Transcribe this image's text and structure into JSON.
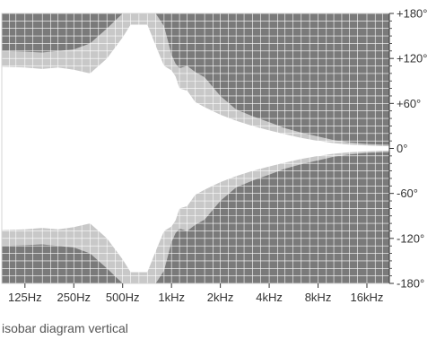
{
  "chart_data": {
    "type": "area",
    "title": "",
    "caption": "isobar diagram vertical",
    "x_scale": "log",
    "xlim_hz": [
      90,
      22000
    ],
    "ylim_deg": [
      -180,
      180
    ],
    "x_ticks": [
      {
        "hz": 125,
        "label": "125Hz"
      },
      {
        "hz": 250,
        "label": "250Hz"
      },
      {
        "hz": 500,
        "label": "500Hz"
      },
      {
        "hz": 1000,
        "label": "1kHz"
      },
      {
        "hz": 2000,
        "label": "2kHz"
      },
      {
        "hz": 4000,
        "label": "4kHz"
      },
      {
        "hz": 8000,
        "label": "8kHz"
      },
      {
        "hz": 16000,
        "label": "16kHz"
      }
    ],
    "y_ticks": [
      {
        "deg": 180,
        "label": "+180°"
      },
      {
        "deg": 120,
        "label": "+120°"
      },
      {
        "deg": 60,
        "label": "+60°"
      },
      {
        "deg": 0,
        "label": "0°"
      },
      {
        "deg": -60,
        "label": "-60°"
      },
      {
        "deg": -120,
        "label": "-120°"
      },
      {
        "deg": -180,
        "label": "-180°"
      }
    ],
    "grid": true,
    "minor_grid_hz": [
      90,
      100,
      110,
      125,
      140,
      160,
      180,
      200,
      225,
      250,
      280,
      315,
      355,
      400,
      450,
      500,
      560,
      630,
      710,
      800,
      900,
      1000,
      1120,
      1250,
      1400,
      1600,
      1800,
      2000,
      2240,
      2500,
      2800,
      3150,
      3550,
      4000,
      4500,
      5000,
      5600,
      6300,
      7100,
      8000,
      9000,
      10000,
      11200,
      12500,
      14000,
      16000,
      18000,
      20000
    ],
    "minor_grid_deg": [
      -180,
      -170,
      -160,
      -150,
      -140,
      -130,
      -120,
      -110,
      -100,
      -90,
      -80,
      -70,
      -60,
      -50,
      -40,
      -30,
      -20,
      -10,
      0,
      10,
      20,
      30,
      40,
      50,
      60,
      70,
      80,
      90,
      100,
      110,
      120,
      130,
      140,
      150,
      160,
      170,
      180
    ],
    "series": [
      {
        "role": "inner_boundary",
        "hz": [
          90,
          125,
          160,
          200,
          250,
          315,
          400,
          500,
          560,
          630,
          710,
          800,
          900,
          1000,
          1060,
          1120,
          1250,
          1400,
          1600,
          2000,
          2500,
          3150,
          4000,
          5000,
          6300,
          8000,
          10000,
          12500,
          16000,
          20000,
          22000
        ],
        "deg": [
          109,
          108,
          106,
          108,
          105,
          100,
          120,
          148,
          165,
          165,
          165,
          137,
          110,
          104,
          96,
          80,
          77,
          62,
          55,
          45,
          37,
          30,
          24,
          19,
          14,
          10,
          7,
          5,
          4,
          3,
          3
        ]
      },
      {
        "role": "outer_boundary",
        "hz": [
          90,
          125,
          160,
          200,
          250,
          315,
          400,
          500,
          560,
          630,
          710,
          800,
          900,
          1000,
          1060,
          1120,
          1250,
          1400,
          1600,
          2000,
          2500,
          3150,
          4000,
          5000,
          6300,
          8000,
          10000,
          12500,
          16000,
          20000,
          22000
        ],
        "deg": [
          130,
          129,
          128,
          130,
          132,
          140,
          160,
          180,
          180,
          180,
          180,
          180,
          163,
          125,
          113,
          107,
          110,
          102,
          95,
          70,
          52,
          43,
          35,
          27,
          21,
          16,
          11,
          8,
          6,
          5,
          5
        ]
      }
    ],
    "colors": {
      "background": "#7a7a7a",
      "band": "#c8c8c8",
      "core": "#ffffff",
      "grid": "#ffffff",
      "text": "#333333"
    }
  }
}
